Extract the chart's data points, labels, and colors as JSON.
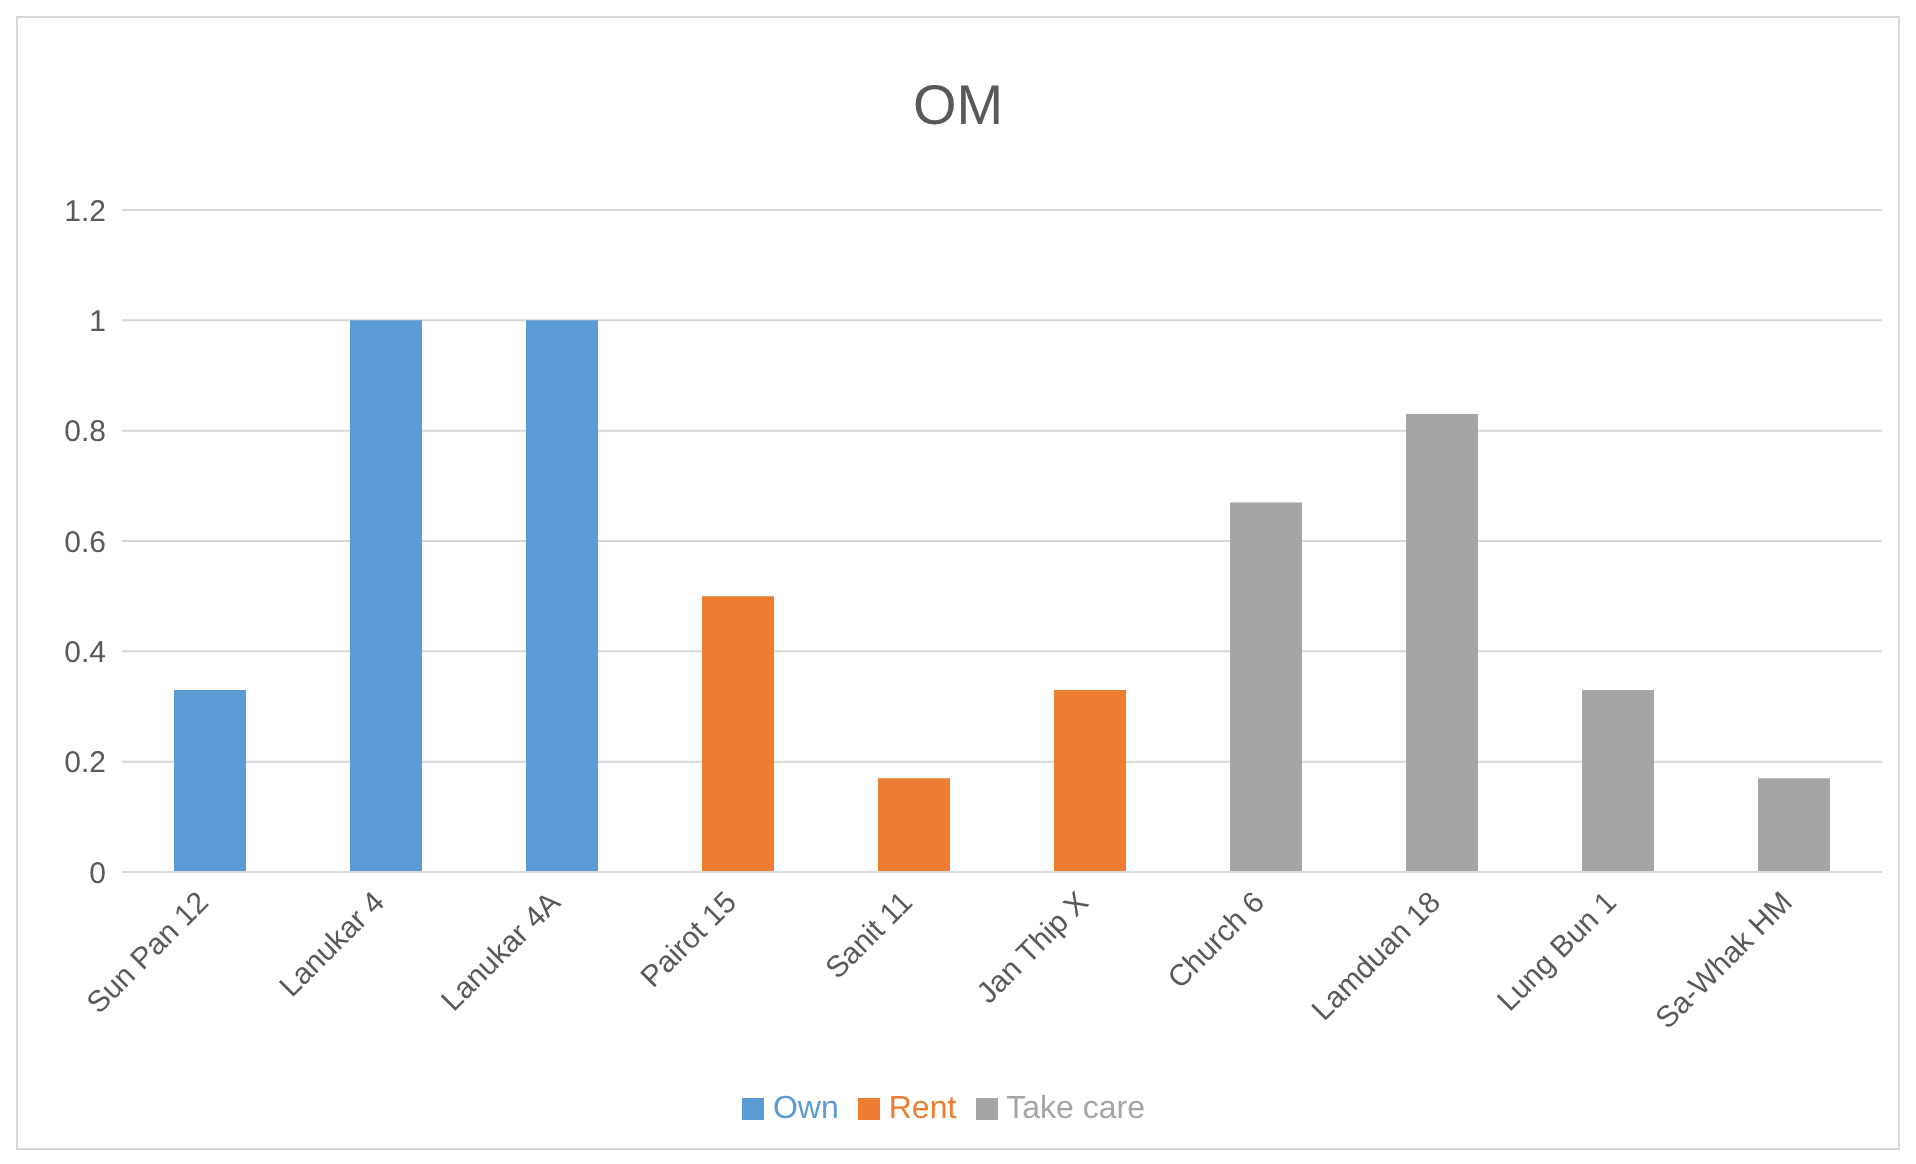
{
  "chart_data": {
    "type": "bar",
    "title": "OM",
    "categories": [
      "Sun Pan 12",
      "Lanukar 4",
      "Lanukar 4A",
      "Pairot 15",
      "Sanit 11",
      "Jan Thip X",
      "Church 6",
      "Lamduan 18",
      "Lung Bun 1",
      "Sa-Whak HM"
    ],
    "series": [
      {
        "name": "Own",
        "color": "#5b9bd5",
        "values": [
          0.33,
          1,
          1,
          null,
          null,
          null,
          null,
          null,
          null,
          null
        ]
      },
      {
        "name": "Rent",
        "color": "#ed7d31",
        "values": [
          null,
          null,
          null,
          0.5,
          0.17,
          0.33,
          null,
          null,
          null,
          null
        ]
      },
      {
        "name": "Take care",
        "color": "#a5a5a5",
        "values": [
          null,
          null,
          null,
          null,
          null,
          null,
          0.67,
          0.83,
          0.33,
          0.17
        ]
      }
    ],
    "ylim": [
      0,
      1.2
    ],
    "yticks": [
      0,
      0.2,
      0.4,
      0.6,
      0.8,
      1,
      1.2
    ],
    "grid": "y",
    "legend": "bottom"
  }
}
